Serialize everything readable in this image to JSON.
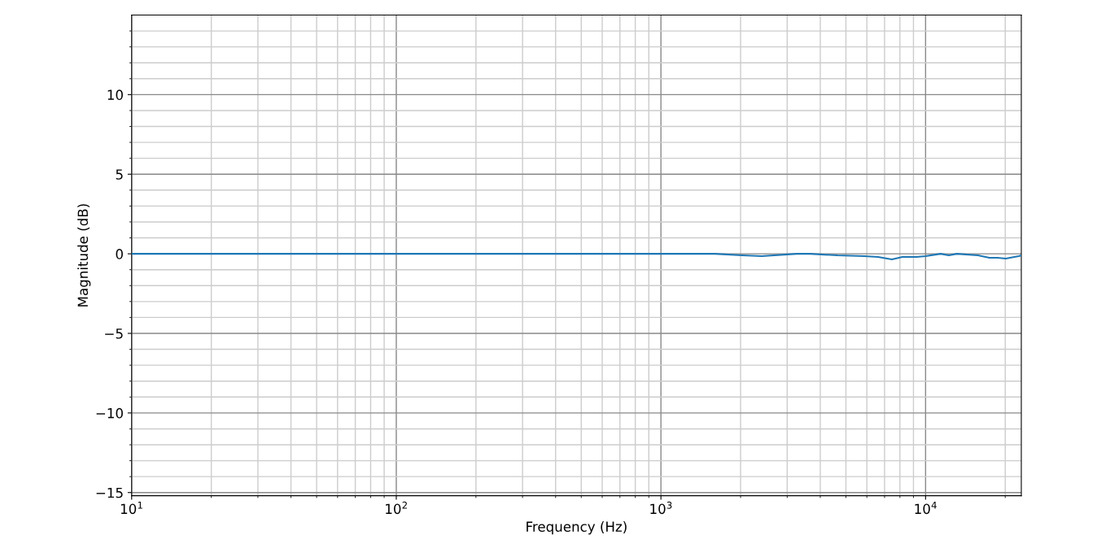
{
  "chart_data": {
    "type": "line",
    "xlabel": "Frequency (Hz)",
    "ylabel": "Magnitude (dB)",
    "log": "x",
    "grid": true,
    "legend": false,
    "marker": "none",
    "line_style": "solid",
    "xlim": [
      10,
      23000
    ],
    "ylim": [
      -15.2,
      15
    ],
    "xticks": [
      {
        "value": 10,
        "label": "10$^{1}$"
      },
      {
        "value": 20,
        "label": null
      },
      {
        "value": 30,
        "label": null
      },
      {
        "value": 40,
        "label": null
      },
      {
        "value": 50,
        "label": null
      },
      {
        "value": 60,
        "label": null
      },
      {
        "value": 70,
        "label": null
      },
      {
        "value": 80,
        "label": null
      },
      {
        "value": 90,
        "label": null
      },
      {
        "value": 100,
        "label": "10$^{2}$"
      },
      {
        "value": 200,
        "label": null
      },
      {
        "value": 300,
        "label": null
      },
      {
        "value": 400,
        "label": null
      },
      {
        "value": 500,
        "label": null
      },
      {
        "value": 600,
        "label": null
      },
      {
        "value": 700,
        "label": null
      },
      {
        "value": 800,
        "label": null
      },
      {
        "value": 900,
        "label": null
      },
      {
        "value": 1000,
        "label": "10$^{3}$"
      },
      {
        "value": 2000,
        "label": null
      },
      {
        "value": 3000,
        "label": null
      },
      {
        "value": 4000,
        "label": null
      },
      {
        "value": 5000,
        "label": null
      },
      {
        "value": 6000,
        "label": null
      },
      {
        "value": 7000,
        "label": null
      },
      {
        "value": 8000,
        "label": null
      },
      {
        "value": 9000,
        "label": null
      },
      {
        "value": 10000,
        "label": "10$^{4}$"
      },
      {
        "value": 20000,
        "label": null
      }
    ],
    "yticks": [
      {
        "value": -15,
        "label": "−15"
      },
      {
        "value": -14,
        "label": null
      },
      {
        "value": -13,
        "label": null
      },
      {
        "value": -12,
        "label": null
      },
      {
        "value": -11,
        "label": null
      },
      {
        "value": -10,
        "label": "−10"
      },
      {
        "value": -9,
        "label": null
      },
      {
        "value": -8,
        "label": null
      },
      {
        "value": -7,
        "label": null
      },
      {
        "value": -6,
        "label": null
      },
      {
        "value": -5,
        "label": "−5"
      },
      {
        "value": -4,
        "label": null
      },
      {
        "value": -3,
        "label": null
      },
      {
        "value": -2,
        "label": null
      },
      {
        "value": -1,
        "label": null
      },
      0,
      {
        "value": 1,
        "label": null
      },
      {
        "value": 2,
        "label": null
      },
      {
        "value": 3,
        "label": null
      },
      {
        "value": 4,
        "label": null
      },
      5,
      {
        "value": 6,
        "label": null
      },
      {
        "value": 7,
        "label": null
      },
      {
        "value": 8,
        "label": null
      },
      {
        "value": 9,
        "label": null
      },
      10,
      {
        "value": 11,
        "label": null
      },
      {
        "value": 12,
        "label": null
      },
      {
        "value": 13,
        "label": null
      },
      {
        "value": 14,
        "label": null
      }
    ],
    "series": [
      {
        "color": "#1f77b4",
        "x": [
          10,
          100,
          1000,
          1600,
          2028,
          2404,
          3258,
          3673,
          4645,
          5862,
          6610,
          7462,
          8171,
          9226,
          10000,
          11400,
          12240,
          13130,
          15770,
          17420,
          18700,
          20090,
          22490,
          23000
        ],
        "values": [
          0,
          0,
          0,
          0,
          -0.1,
          -0.15,
          0,
          0,
          -0.1,
          -0.15,
          -0.2,
          -0.35,
          -0.2,
          -0.2,
          -0.15,
          0,
          -0.1,
          0,
          -0.1,
          -0.25,
          -0.25,
          -0.3,
          -0.15,
          -0.1
        ]
      }
    ]
  }
}
